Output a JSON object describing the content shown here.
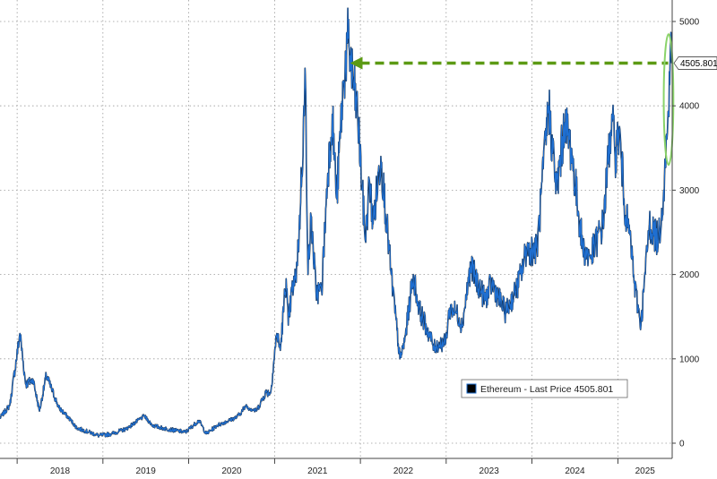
{
  "chart_data": {
    "type": "line",
    "title": "",
    "xlabel": "",
    "ylabel": "",
    "ylim": [
      0,
      5000
    ],
    "xlim": [
      "2017-10-20",
      "2025-08-20"
    ],
    "y_ticks": [
      0,
      1000,
      2000,
      3000,
      4000,
      5000
    ],
    "y_tick_labels": [
      "0",
      "1000",
      "2000",
      "3000",
      "4000",
      "5000"
    ],
    "x_tick_labels": [
      "2018",
      "2019",
      "2020",
      "2021",
      "2022",
      "2023",
      "2024",
      "2025"
    ],
    "grid": true,
    "legend_position": "bottom-right",
    "series": [
      {
        "name": "Ethereum - Last Price 4505.801",
        "color": "#1f6fd1",
        "x": [
          "2017-10-20",
          "2017-12-01",
          "2018-01-13",
          "2018-02-06",
          "2018-03-10",
          "2018-04-06",
          "2018-05-05",
          "2018-06-28",
          "2018-08-15",
          "2018-09-12",
          "2018-11-15",
          "2018-12-15",
          "2019-02-06",
          "2019-04-10",
          "2019-06-26",
          "2019-08-01",
          "2019-09-10",
          "2019-12-18",
          "2020-02-14",
          "2020-03-16",
          "2020-05-01",
          "2020-07-25",
          "2020-09-01",
          "2020-10-15",
          "2020-11-24",
          "2020-12-15",
          "2021-01-10",
          "2021-01-25",
          "2021-02-19",
          "2021-02-28",
          "2021-03-15",
          "2021-04-01",
          "2021-04-15",
          "2021-05-12",
          "2021-05-23",
          "2021-06-05",
          "2021-06-26",
          "2021-07-20",
          "2021-08-15",
          "2021-09-03",
          "2021-09-22",
          "2021-10-21",
          "2021-11-10",
          "2021-12-04",
          "2021-12-20",
          "2022-01-22",
          "2022-02-09",
          "2022-02-24",
          "2022-03-29",
          "2022-05-12",
          "2022-06-18",
          "2022-07-08",
          "2022-08-14",
          "2022-09-07",
          "2022-11-09",
          "2022-12-30",
          "2023-01-15",
          "2023-02-15",
          "2023-03-10",
          "2023-04-15",
          "2023-06-15",
          "2023-07-15",
          "2023-09-11",
          "2023-10-24",
          "2023-11-15",
          "2023-12-10",
          "2024-01-23",
          "2024-03-12",
          "2024-04-15",
          "2024-05-20",
          "2024-06-15",
          "2024-08-05",
          "2024-09-06",
          "2024-10-30",
          "2024-12-06",
          "2024-12-20",
          "2025-01-06",
          "2025-02-03",
          "2025-02-25",
          "2025-03-11",
          "2025-04-09",
          "2025-05-15",
          "2025-06-22",
          "2025-07-15",
          "2025-08-01",
          "2025-08-13",
          "2025-08-18"
        ],
        "y": [
          300,
          450,
          1300,
          700,
          750,
          380,
          800,
          420,
          280,
          180,
          120,
          90,
          110,
          170,
          320,
          210,
          180,
          130,
          270,
          110,
          210,
          310,
          440,
          380,
          600,
          600,
          1300,
          1100,
          1950,
          1400,
          1800,
          1950,
          2500,
          4300,
          2000,
          2700,
          1800,
          1800,
          3200,
          3900,
          2900,
          4300,
          4800,
          4200,
          3900,
          2400,
          3100,
          2600,
          3400,
          2000,
          1000,
          1200,
          2000,
          1600,
          1150,
          1200,
          1600,
          1550,
          1400,
          2100,
          1700,
          1900,
          1550,
          1800,
          2000,
          2300,
          2300,
          4000,
          3000,
          3800,
          3500,
          2300,
          2200,
          2600,
          3900,
          3400,
          3700,
          2700,
          2400,
          1900,
          1400,
          2600,
          2400,
          3000,
          3800,
          4750,
          4505.801
        ]
      }
    ],
    "reference_line": {
      "from_x": "2021-11-10",
      "to_x": "2025-08-18",
      "y": 4505.801,
      "color": "#5c9a14",
      "style": "dashed"
    },
    "highlight_ellipse": {
      "x_start": "2025-07-15",
      "x_end": "2025-08-25",
      "y_low": 3300,
      "y_high": 4850,
      "color": "#8ad36a"
    },
    "last_price_label": "4505.801"
  }
}
